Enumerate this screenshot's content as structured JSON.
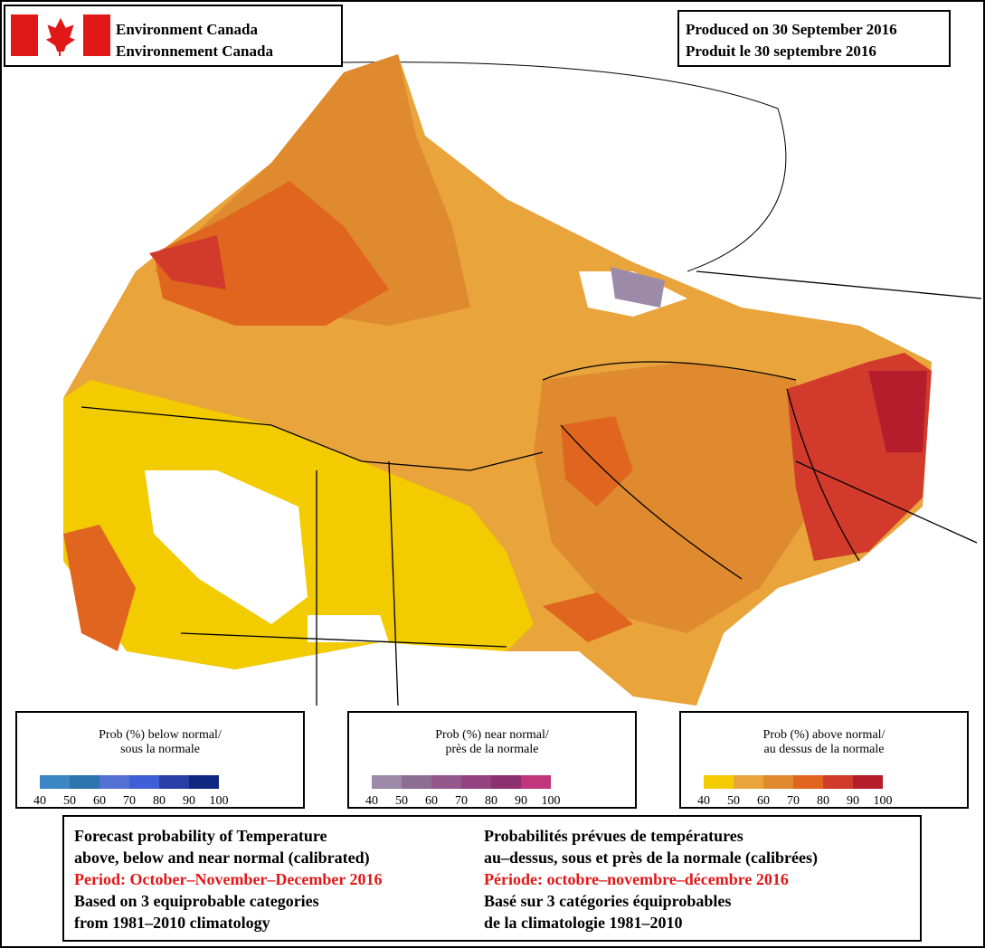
{
  "header": {
    "agency": [
      "Environment Canada",
      "Environnement Canada"
    ],
    "produced": [
      "Produced on 30 September 2016",
      "Produit le 30 septembre 2016"
    ]
  },
  "legends": [
    {
      "title": [
        "Prob (%) below normal/",
        "sous la normale"
      ],
      "ticks": [
        40,
        50,
        60,
        70,
        80,
        90,
        100
      ],
      "colors": [
        "#3b86c4",
        "#2c74ad",
        "#5470d2",
        "#3f5fd6",
        "#2a3ea8",
        "#10277f"
      ]
    },
    {
      "title": [
        "Prob (%) near normal/",
        "près de la normale"
      ],
      "ticks": [
        40,
        50,
        60,
        70,
        80,
        90,
        100
      ],
      "colors": [
        "#9c8aa8",
        "#8d6e92",
        "#93578b",
        "#93437f",
        "#8c3070",
        "#c0367c"
      ]
    },
    {
      "title": [
        "Prob (%) above normal/",
        "au dessus de la normale"
      ],
      "ticks": [
        40,
        50,
        60,
        70,
        80,
        90,
        100
      ],
      "colors": [
        "#f2cb00",
        "#e9a43c",
        "#df8a2e",
        "#e0661f",
        "#d23a2b",
        "#b51d2c"
      ]
    }
  ],
  "footer": {
    "english": [
      "Forecast probability of Temperature",
      "above, below and near normal (calibrated)",
      "Period: October–November–December 2016",
      "Based on 3 equiprobable categories",
      " from 1981–2010 climatology"
    ],
    "french": [
      "Probabilités prévues de températures",
      "au–dessus, sous et près de la normale (calibrées)",
      "Période: octobre–novembre–décembre 2016",
      "Basé sur 3 catégories équiprobables",
      "de la climatologie 1981–2010"
    ]
  }
}
